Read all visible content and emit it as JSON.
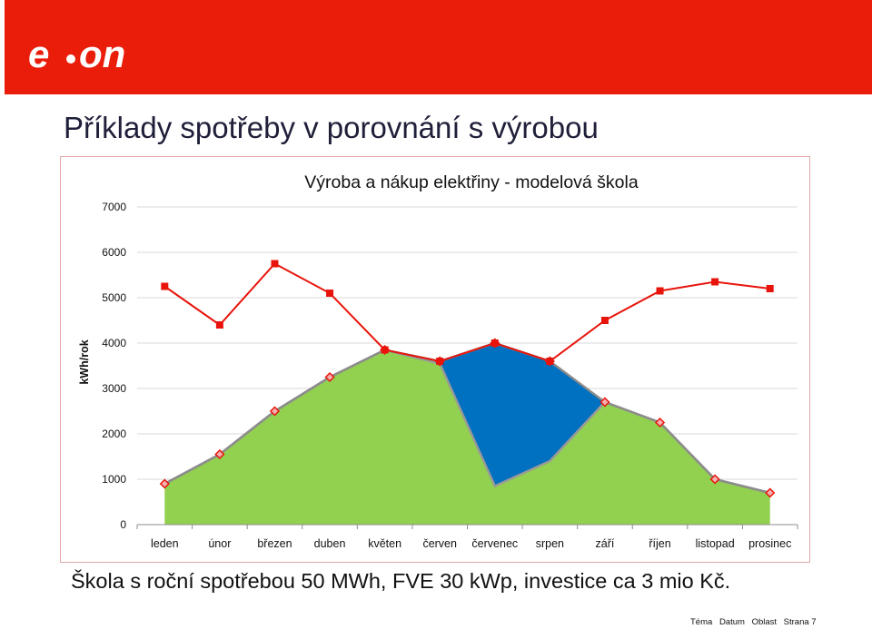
{
  "header": {
    "brand": "e·on",
    "brand_color": "#ea1c0a"
  },
  "slide_title": "Příklady spotřeby v porovnání s výrobou",
  "chart_data": {
    "type": "line",
    "title": "Výroba a nákup elektřiny - modelová škola",
    "xlabel": "",
    "ylabel": "kWh/rok",
    "categories": [
      "leden",
      "únor",
      "březen",
      "duben",
      "květen",
      "červen",
      "červenec",
      "srpen",
      "září",
      "říjen",
      "listopad",
      "prosinec"
    ],
    "ylim": [
      0,
      7000
    ],
    "yticks": [
      "0",
      "1000",
      "2000",
      "3000",
      "4000",
      "5000",
      "6000",
      "7000"
    ],
    "grid": true,
    "legend": "none",
    "series": [
      {
        "values": [
          5250,
          4400,
          5750,
          5100,
          3850,
          3600,
          4000,
          3600,
          4500,
          5150,
          5350,
          5200
        ],
        "color": "#e8140b",
        "marker": "square"
      },
      {
        "values": [
          900,
          1550,
          2500,
          3250,
          3850,
          3600,
          4000,
          3600,
          2700,
          2250,
          1000,
          700
        ],
        "color": "#e8140b",
        "marker": "diamond"
      },
      {
        "values": [
          900,
          1550,
          2500,
          3250,
          3850,
          3550,
          850,
          1400,
          2700,
          2250,
          1000,
          700
        ],
        "color": "#999999",
        "marker": "none"
      }
    ],
    "fills": {
      "lower_area": "#92d050",
      "gap_area": "#0070c0"
    }
  },
  "caption": "Škola s roční spotřebou 50 MWh, FVE 30 kWp, investice ca 3 mio Kč.",
  "footer": [
    "Téma",
    "Datum",
    "Oblast",
    "Strana 7"
  ]
}
